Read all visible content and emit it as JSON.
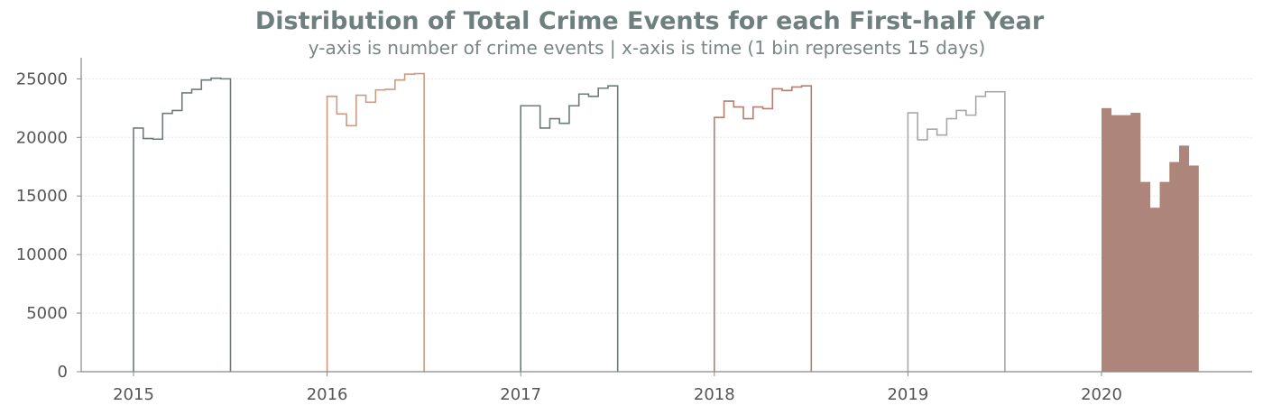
{
  "chart_data": {
    "type": "histogram-step",
    "title": "Distribution of Total Crime Events for each First-half Year",
    "subtitle": "y-axis is number of crime events | x-axis is time (1 bin represents 15 days)",
    "ylim": [
      0,
      26800
    ],
    "yticks": [
      0,
      5000,
      10000,
      15000,
      20000,
      25000
    ],
    "ytick_labels": [
      "0",
      "5000",
      "10000",
      "15000",
      "20000",
      "25000"
    ],
    "grid": "horizontal-dotted",
    "series": [
      {
        "name": "2015",
        "style": "step",
        "color": "#6d7b7c",
        "values": [
          20800,
          19900,
          19850,
          22050,
          22300,
          23800,
          24100,
          24900,
          25050,
          25000
        ]
      },
      {
        "name": "2016",
        "style": "step",
        "color": "#cf9a80",
        "values": [
          23500,
          22000,
          21000,
          23600,
          23000,
          24050,
          24100,
          24900,
          25400,
          25450
        ]
      },
      {
        "name": "2017",
        "style": "step",
        "color": "#6a7d79",
        "values": [
          22700,
          22700,
          20800,
          21600,
          21200,
          22700,
          23700,
          23500,
          24200,
          24400
        ]
      },
      {
        "name": "2018",
        "style": "step",
        "color": "#b67e70",
        "values": [
          21700,
          23100,
          22600,
          21600,
          22600,
          22450,
          24150,
          24000,
          24300,
          24400
        ]
      },
      {
        "name": "2019",
        "style": "step",
        "color": "#a6a9a8",
        "values": [
          22100,
          19800,
          20700,
          20200,
          21600,
          22300,
          21900,
          23500,
          23900,
          23900
        ]
      },
      {
        "name": "2020",
        "style": "filled",
        "color": "#ad857a",
        "values": [
          22500,
          21900,
          21900,
          22100,
          16200,
          14000,
          16200,
          17900,
          19300,
          17600
        ]
      }
    ]
  }
}
